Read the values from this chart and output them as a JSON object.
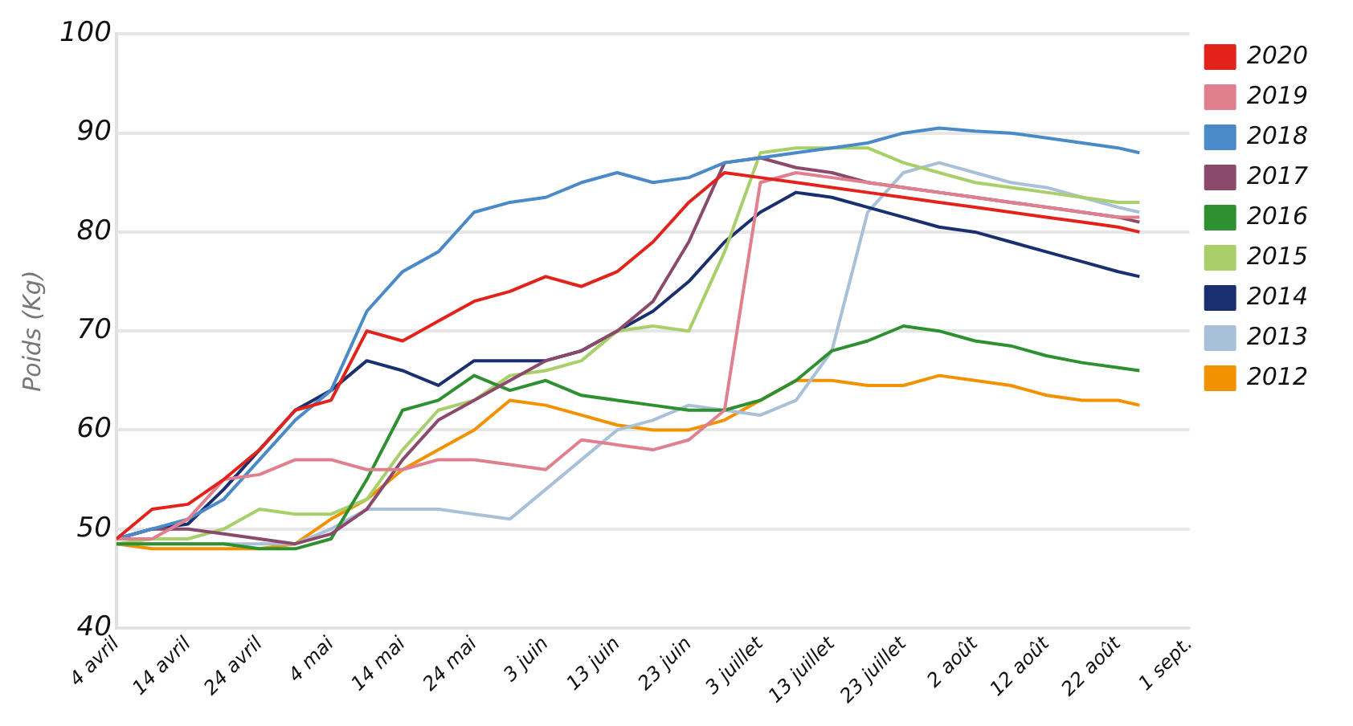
{
  "chart_data": {
    "type": "line",
    "ylabel": "Poids (Kg)",
    "legend": "right",
    "grid": "y",
    "marker": "none",
    "line_style": "solid",
    "x": [
      "--04-04",
      "--04-09",
      "--04-14",
      "--04-19",
      "--04-24",
      "--04-29",
      "--05-04",
      "--05-09",
      "--05-14",
      "--05-19",
      "--05-24",
      "--05-29",
      "--06-03",
      "--06-08",
      "--06-13",
      "--06-18",
      "--06-23",
      "--06-28",
      "--07-03",
      "--07-08",
      "--07-13",
      "--07-18",
      "--07-23",
      "--07-28",
      "--08-02",
      "--08-07",
      "--08-12",
      "--08-17",
      "--08-22",
      "--08-25"
    ],
    "xlim": [
      "--04-04",
      "--09-01"
    ],
    "xticks": [
      {
        "value": "--04-04",
        "label": "4 avril"
      },
      {
        "value": "--04-14",
        "label": "14 avril"
      },
      {
        "value": "--04-24",
        "label": "24 avril"
      },
      {
        "value": "--05-04",
        "label": "4 mai"
      },
      {
        "value": "--05-14",
        "label": "14 mai"
      },
      {
        "value": "--05-24",
        "label": "24 mai"
      },
      {
        "value": "--06-03",
        "label": "3 juin"
      },
      {
        "value": "--06-13",
        "label": "13 juin"
      },
      {
        "value": "--06-23",
        "label": "23 juin"
      },
      {
        "value": "--07-03",
        "label": "3 juillet"
      },
      {
        "value": "--07-13",
        "label": "13 juillet"
      },
      {
        "value": "--07-23",
        "label": "23 juillet"
      },
      {
        "value": "--08-02",
        "label": "2 août"
      },
      {
        "value": "--08-12",
        "label": "12 août"
      },
      {
        "value": "--08-22",
        "label": "22 août"
      },
      {
        "value": "--09-01",
        "label": "1 sept."
      }
    ],
    "ylim": [
      40,
      100
    ],
    "yticks": [
      40,
      50,
      60,
      70,
      80,
      90,
      100
    ],
    "series": [
      {
        "name": "2020",
        "color": "#e3221b",
        "values": [
          49,
          52,
          52.5,
          55,
          58,
          62,
          63,
          70,
          69,
          71,
          73,
          74,
          75.5,
          74.5,
          76,
          79,
          83,
          86,
          85.5,
          85,
          84.5,
          84,
          83.5,
          83,
          82.5,
          82,
          81.5,
          81,
          80.5,
          80
        ]
      },
      {
        "name": "2019",
        "color": "#e0808f",
        "values": [
          49,
          49,
          51,
          55,
          55.5,
          57,
          57,
          56,
          56,
          57,
          57,
          56.5,
          56,
          59,
          58.5,
          58,
          59,
          62,
          85,
          86,
          85.5,
          85,
          84.5,
          84,
          83.5,
          83,
          82.5,
          82,
          81.5,
          81.5
        ]
      },
      {
        "name": "2018",
        "color": "#4a8ac8",
        "values": [
          49,
          50,
          51,
          53,
          57,
          61,
          64,
          72,
          76,
          78,
          82,
          83,
          83.5,
          85,
          86,
          85,
          85.5,
          87,
          87.5,
          88,
          88.5,
          89,
          90,
          90.5,
          90.2,
          90,
          89.5,
          89,
          88.5,
          88
        ]
      },
      {
        "name": "2017",
        "color": "#8b4a6b",
        "values": [
          49,
          50,
          50,
          49.5,
          49,
          48.5,
          49.5,
          52,
          57,
          61,
          63,
          65,
          67,
          68,
          70,
          73,
          79,
          87,
          87.5,
          86.5,
          86,
          85,
          84.5,
          84,
          83.5,
          83,
          82.5,
          82,
          81.5,
          81
        ]
      },
      {
        "name": "2016",
        "color": "#2e9030",
        "values": [
          48.5,
          48.5,
          48.5,
          48.5,
          48,
          48,
          49,
          55,
          62,
          63,
          65.5,
          64,
          65,
          63.5,
          63,
          62.5,
          62,
          62,
          63,
          65,
          68,
          69,
          70.5,
          70,
          69,
          68.5,
          67.5,
          66.8,
          66.3,
          66
        ]
      },
      {
        "name": "2015",
        "color": "#a8cf6a",
        "values": [
          48.5,
          49,
          49,
          50,
          52,
          51.5,
          51.5,
          53,
          58,
          62,
          63,
          65.5,
          66,
          67,
          70,
          70.5,
          70,
          78,
          88,
          88.5,
          88.5,
          88.5,
          87,
          86,
          85,
          84.5,
          84,
          83.5,
          83,
          83
        ]
      },
      {
        "name": "2014",
        "color": "#1a2f70",
        "values": [
          49,
          50,
          50.5,
          54,
          58,
          62,
          64,
          67,
          66,
          64.5,
          67,
          67,
          67,
          68,
          70,
          72,
          75,
          79,
          82,
          84,
          83.5,
          82.5,
          81.5,
          80.5,
          80,
          79,
          78,
          77,
          76,
          75.5
        ]
      },
      {
        "name": "2013",
        "color": "#a8c0d8",
        "values": [
          48.5,
          48.5,
          48.5,
          48.5,
          48.5,
          48.5,
          50,
          52,
          52,
          52,
          51.5,
          51,
          54,
          57,
          60,
          61,
          62.5,
          62,
          61.5,
          63,
          68,
          82,
          86,
          87,
          86,
          85,
          84.5,
          83.5,
          82.5,
          82
        ]
      },
      {
        "name": "2012",
        "color": "#f39200",
        "values": [
          48.5,
          48,
          48,
          48,
          48,
          48.5,
          51,
          53,
          56,
          58,
          60,
          63,
          62.5,
          61.5,
          60.5,
          60,
          60,
          61,
          63,
          65,
          65,
          64.5,
          64.5,
          65.5,
          65,
          64.5,
          63.5,
          63,
          63,
          62.5
        ]
      }
    ]
  }
}
